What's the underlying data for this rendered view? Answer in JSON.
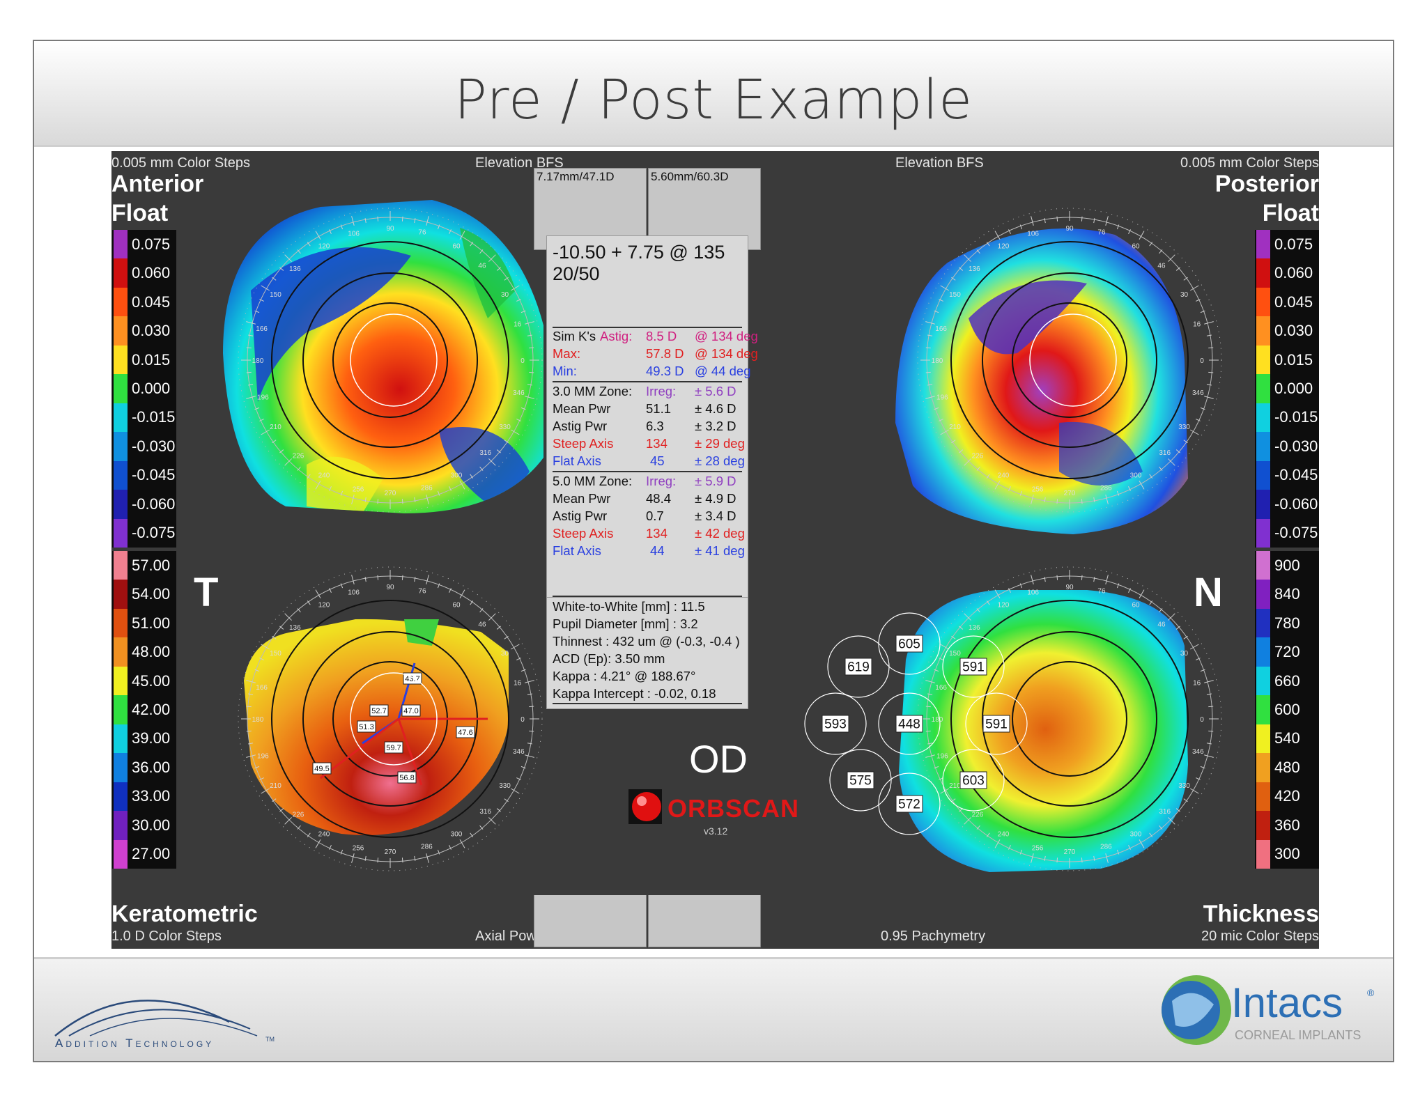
{
  "slide": {
    "title": "Pre / Post Example"
  },
  "panel": {
    "top_left_label": "0.005 mm Color Steps",
    "elev_left": "Elevation BFS",
    "elev_right": "Elevation BFS",
    "top_right_label": "0.005 mm Color Steps",
    "anterior": "Anterior",
    "float_left": "Float",
    "posterior": "Posterior",
    "float_right": "Float",
    "temporal": "T",
    "nasal": "N",
    "keratometric": "Keratometric",
    "bottom_left_label": "1.0 D Color Steps",
    "axial_power": "Axial Power",
    "pachymetry": "0.95 Pachymetry",
    "thickness": "Thickness",
    "bottom_right_label": "20 mic Color Steps"
  },
  "scales": {
    "float_left": [
      "0.075",
      "0.060",
      "0.045",
      "0.030",
      "0.015",
      "0.000",
      "-0.015",
      "-0.030",
      "-0.045",
      "-0.060",
      "-0.075"
    ],
    "float_right": [
      "0.075",
      "0.060",
      "0.045",
      "0.030",
      "0.015",
      "0.000",
      "-0.015",
      "-0.030",
      "-0.045",
      "-0.060",
      "-0.075"
    ],
    "kerato": [
      "57.00",
      "54.00",
      "51.00",
      "48.00",
      "45.00",
      "42.00",
      "39.00",
      "36.00",
      "33.00",
      "30.00",
      "27.00"
    ],
    "thickness": [
      "900",
      "840",
      "780",
      "720",
      "660",
      "600",
      "540",
      "480",
      "420",
      "360",
      "300"
    ]
  },
  "boxes": {
    "left": "7.17mm/47.1D",
    "right": "5.60mm/60.3D"
  },
  "center": {
    "rx": "-10.50 + 7.75 @ 135  20/50",
    "simk": {
      "label": "Sim K's",
      "astig_label": "Astig:",
      "astig_val": "8.5 D",
      "astig_axis": "@ 134 deg",
      "max_label": "Max:",
      "max_val": "57.8 D",
      "max_axis": "@ 134 deg",
      "min_label": "Min:",
      "min_val": "49.3 D",
      "min_axis": "@ 44 deg"
    },
    "zone3": {
      "label": "3.0 MM Zone:",
      "irreg_label": "Irreg:",
      "irreg_val": "± 5.6 D",
      "mean_label": "Mean Pwr",
      "mean_val": "51.1",
      "mean_sd": "± 4.6 D",
      "astig_label": "Astig Pwr",
      "astig_val": "6.3",
      "astig_sd": "± 3.2 D",
      "steep_label": "Steep Axis",
      "steep_val": "134",
      "steep_sd": "± 29 deg",
      "flat_label": "Flat Axis",
      "flat_val": "45",
      "flat_sd": "± 28 deg"
    },
    "zone5": {
      "label": "5.0 MM Zone:",
      "irreg_label": "Irreg:",
      "irreg_val": "± 5.9 D",
      "mean_label": "Mean Pwr",
      "mean_val": "48.4",
      "mean_sd": "± 4.9 D",
      "astig_label": "Astig Pwr",
      "astig_val": "0.7",
      "astig_sd": "± 3.4 D",
      "steep_label": "Steep Axis",
      "steep_val": "134",
      "steep_sd": "± 42 deg",
      "flat_label": "Flat Axis",
      "flat_val": "44",
      "flat_sd": "± 41 deg"
    },
    "info": [
      "White-to-White [mm] : 11.5",
      "Pupil Diameter [mm] :  3.2",
      "Thinnest : 432 um @ (-0.3, -0.4 )",
      "ACD (Ep): 3.50 mm",
      "Kappa : 4.21° @ 188.67°",
      "Kappa Intercept : -0.02, 0.18"
    ]
  },
  "eye": "OD",
  "brand": {
    "name": "ORBSCAN",
    "version": "v3.12"
  },
  "kerato_labels": [
    "43.7",
    "52.7",
    "47.0",
    "51.3",
    "59.7",
    "47.6",
    "49.5",
    "56.8"
  ],
  "pachy_labels": [
    "605",
    "619",
    "591",
    "593",
    "448",
    "591",
    "575",
    "603",
    "572"
  ],
  "dial_labels": [
    "90",
    "76",
    "60",
    "46",
    "30",
    "16",
    "0",
    "346",
    "330",
    "316",
    "300",
    "286",
    "270",
    "256",
    "240",
    "226",
    "210",
    "196",
    "180",
    "166",
    "150",
    "136",
    "120",
    "106"
  ],
  "footer": {
    "addition": "Addition Technology",
    "tm": "TM",
    "intacs": "Intacs",
    "reg": "®",
    "corneal": "CORNEAL IMPLANTS"
  },
  "colors": {
    "panel_bg": "#3a3a3a",
    "steep_red": "#e02020",
    "flat_blue": "#2a40e0",
    "irreg_purple": "#9040c0",
    "simk_pink": "#d02080",
    "intacs_blue": "#2c6fb5",
    "intacs_green": "#6fb84a"
  }
}
